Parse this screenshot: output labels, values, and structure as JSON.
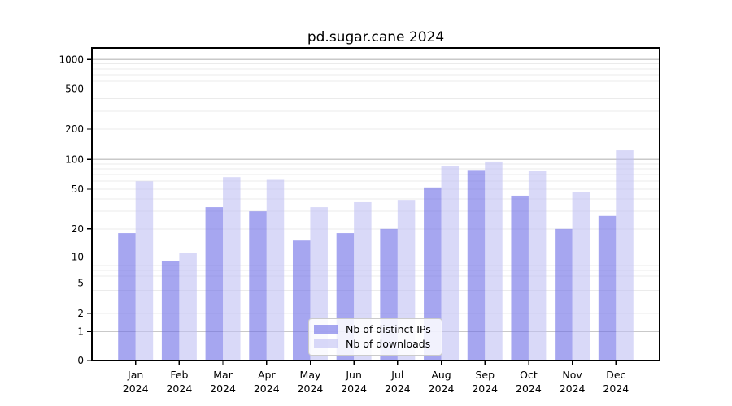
{
  "figure": {
    "title": "pd.sugar.cane 2024",
    "background_color": "#ffffff"
  },
  "chart_data": {
    "type": "bar",
    "title": "pd.sugar.cane 2024",
    "categories": [
      "Jan 2024",
      "Feb 2024",
      "Mar 2024",
      "Apr 2024",
      "May 2024",
      "Jun 2024",
      "Jul 2024",
      "Aug 2024",
      "Sep 2024",
      "Oct 2024",
      "Nov 2024",
      "Dec 2024"
    ],
    "series": [
      {
        "name": "Nb of distinct IPs",
        "color": "#6b6be6",
        "opacity": 0.6,
        "rendered_color": "#a6a6f0",
        "values": [
          18,
          9,
          33,
          30,
          15,
          18,
          20,
          52,
          78,
          43,
          20,
          27
        ]
      },
      {
        "name": "Nb of downloads",
        "color": "#c0c0f3",
        "opacity": 0.6,
        "rendered_color": "#d9d9f8",
        "values": [
          60,
          11,
          66,
          62,
          33,
          37,
          39,
          85,
          95,
          76,
          47,
          123
        ]
      }
    ],
    "xlabel": "",
    "ylabel": "",
    "yscale": "symlog",
    "yticks": [
      0,
      1,
      2,
      5,
      10,
      20,
      50,
      100,
      200,
      500,
      1000
    ],
    "ylim": [
      0,
      1300
    ],
    "grid": "horizontal, major and minor log gridlines",
    "legend_position": "lower center, inside axes",
    "axis_color": "#000000",
    "major_grid_color": "#c9c9c9",
    "minor_grid_color": "#ebebeb"
  }
}
